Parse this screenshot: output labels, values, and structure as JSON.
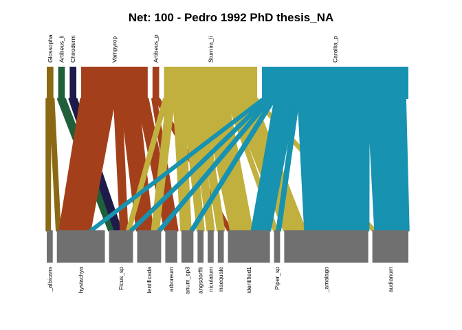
{
  "chart_data": {
    "type": "bipartite",
    "title": "Net: 100 - Pedro 1992 PhD thesis_NA",
    "higher_level": [
      {
        "name": "Glossopha",
        "color": "#8B6914",
        "width": 1
      },
      {
        "name": "Artibeus_li",
        "color": "#1F5F3A",
        "width": 1
      },
      {
        "name": "Chiroderm",
        "color": "#1E1B4B",
        "width": 1
      },
      {
        "name": "Vampyrop",
        "color": "#A3401B",
        "width": 10
      },
      {
        "name": "Artibeus_p",
        "color": "#A3401B",
        "width": 1
      },
      {
        "name": "Sturnira_li",
        "color": "#C1B03E",
        "width": 14
      },
      {
        "name": "Carollia_p",
        "color": "#1792B0",
        "width": 22
      }
    ],
    "lower_level": [
      {
        "name": "_albicans",
        "width": 1
      },
      {
        "name": "hystachya",
        "width": 8
      },
      {
        "name": "Ficus_sp",
        "width": 4
      },
      {
        "name": "lentificada",
        "width": 4
      },
      {
        "name": "arboreum",
        "width": 2
      },
      {
        "name": "anum_sp3",
        "width": 2
      },
      {
        "name": "angsdorffii",
        "width": 1
      },
      {
        "name": "niculatum",
        "width": 1
      },
      {
        "name": "inaequale",
        "width": 1
      },
      {
        "name": "identified1",
        "width": 7
      },
      {
        "name": "Piper_sp",
        "width": 1
      },
      {
        "name": "_amalago",
        "width": 14
      },
      {
        "name": "audianum",
        "width": 6
      }
    ],
    "links": [
      {
        "from": "Glossopha",
        "to": "_albicans",
        "value": 0.5
      },
      {
        "from": "Glossopha",
        "to": "hystachya",
        "value": 0.5
      },
      {
        "from": "Artibeus_li",
        "to": "Ficus_sp",
        "value": 1
      },
      {
        "from": "Chiroderm",
        "to": "Ficus_sp",
        "value": 1
      },
      {
        "from": "Vampyrop",
        "to": "hystachya",
        "value": 5
      },
      {
        "from": "Vampyrop",
        "to": "Ficus_sp",
        "value": 1
      },
      {
        "from": "Vampyrop",
        "to": "lentificada",
        "value": 2.5
      },
      {
        "from": "Vampyrop",
        "to": "arboreum",
        "value": 1.5
      },
      {
        "from": "Artibeus_p",
        "to": "arboreum",
        "value": 0.5
      },
      {
        "from": "Artibeus_p",
        "to": "identified1",
        "value": 0.5
      },
      {
        "from": "Sturnira_li",
        "to": "Ficus_sp",
        "value": 0.5
      },
      {
        "from": "Sturnira_li",
        "to": "lentificada",
        "value": 1
      },
      {
        "from": "Sturnira_li",
        "to": "anum_sp3",
        "value": 1.5
      },
      {
        "from": "Sturnira_li",
        "to": "angsdorffii",
        "value": 1
      },
      {
        "from": "Sturnira_li",
        "to": "niculatum",
        "value": 1
      },
      {
        "from": "Sturnira_li",
        "to": "inaequale",
        "value": 1
      },
      {
        "from": "Sturnira_li",
        "to": "identified1",
        "value": 3.5
      },
      {
        "from": "Sturnira_li",
        "to": "Piper_sp",
        "value": 0.5
      },
      {
        "from": "Sturnira_li",
        "to": "_amalago",
        "value": 3.5
      },
      {
        "from": "Sturnira_li",
        "to": "audianum",
        "value": 0.5
      },
      {
        "from": "Carollia_p",
        "to": "hystachya",
        "value": 0.5
      },
      {
        "from": "Carollia_p",
        "to": "Ficus_sp",
        "value": 0.5
      },
      {
        "from": "Carollia_p",
        "to": "lentificada",
        "value": 0.5
      },
      {
        "from": "Carollia_p",
        "to": "anum_sp3",
        "value": 0.5
      },
      {
        "from": "Carollia_p",
        "to": "identified1",
        "value": 3
      },
      {
        "from": "Carollia_p",
        "to": "Piper_sp",
        "value": 0.5
      },
      {
        "from": "Carollia_p",
        "to": "_amalago",
        "value": 10.5
      },
      {
        "from": "Carollia_p",
        "to": "audianum",
        "value": 5.5
      }
    ],
    "lower_color": "#707070"
  }
}
